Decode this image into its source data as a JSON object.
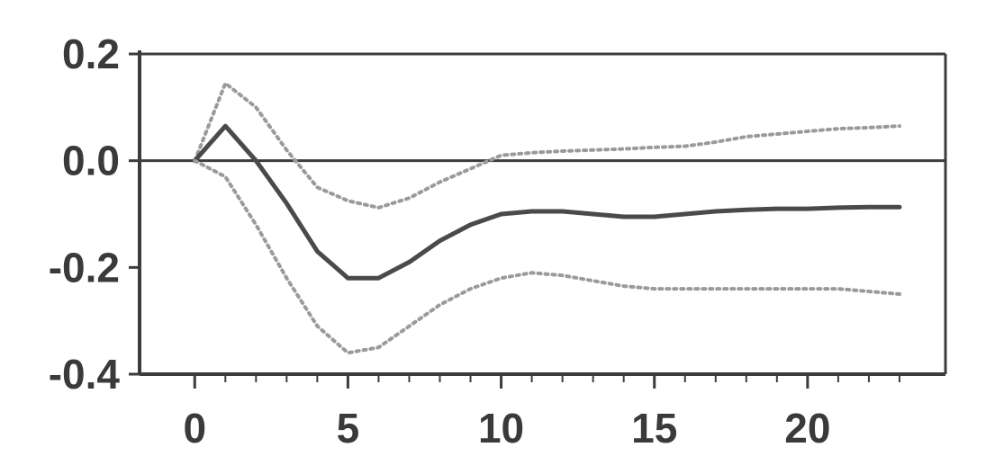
{
  "chart_data": {
    "type": "line",
    "title": "",
    "xlabel": "",
    "ylabel": "",
    "xlim": [
      -1.8,
      24.5
    ],
    "ylim": [
      -0.4,
      0.2
    ],
    "x_ticks": [
      0,
      5,
      10,
      15,
      20
    ],
    "x_tick_labels": [
      "0",
      "5",
      "10",
      "15",
      "20"
    ],
    "y_ticks": [
      0.2,
      0.0,
      -0.2,
      -0.4
    ],
    "y_tick_labels": [
      "0.2",
      "0.0",
      "-0.2",
      "-0.4"
    ],
    "grid": false,
    "reference_line_y": 0.0,
    "series": [
      {
        "role": "upper-band",
        "style": "dotted",
        "color": "#9a9a9a",
        "x": [
          0,
          1,
          2,
          3,
          4,
          5,
          6,
          7,
          8,
          9,
          10,
          11,
          12,
          13,
          14,
          15,
          16,
          17,
          18,
          19,
          20,
          21,
          22,
          23
        ],
        "y": [
          0.0,
          0.145,
          0.1,
          0.02,
          -0.05,
          -0.075,
          -0.088,
          -0.07,
          -0.04,
          -0.015,
          0.01,
          0.015,
          0.018,
          0.02,
          0.022,
          0.025,
          0.027,
          0.035,
          0.045,
          0.05,
          0.055,
          0.06,
          0.062,
          0.065
        ]
      },
      {
        "role": "estimate",
        "style": "solid",
        "color": "#4a4a4a",
        "x": [
          0,
          1,
          2,
          3,
          4,
          5,
          6,
          7,
          8,
          9,
          10,
          11,
          12,
          13,
          14,
          15,
          16,
          17,
          18,
          19,
          20,
          21,
          22,
          23
        ],
        "y": [
          0.0,
          0.065,
          0.0,
          -0.08,
          -0.17,
          -0.22,
          -0.22,
          -0.19,
          -0.15,
          -0.12,
          -0.1,
          -0.095,
          -0.095,
          -0.1,
          -0.105,
          -0.105,
          -0.1,
          -0.095,
          -0.092,
          -0.09,
          -0.09,
          -0.088,
          -0.087,
          -0.087
        ]
      },
      {
        "role": "lower-band",
        "style": "dotted",
        "color": "#9a9a9a",
        "x": [
          0,
          1,
          2,
          3,
          4,
          5,
          6,
          7,
          8,
          9,
          10,
          11,
          12,
          13,
          14,
          15,
          16,
          17,
          18,
          19,
          20,
          21,
          22,
          23
        ],
        "y": [
          0.0,
          -0.03,
          -0.12,
          -0.22,
          -0.31,
          -0.36,
          -0.35,
          -0.31,
          -0.27,
          -0.24,
          -0.22,
          -0.21,
          -0.215,
          -0.225,
          -0.235,
          -0.24,
          -0.24,
          -0.24,
          -0.24,
          -0.24,
          -0.24,
          -0.24,
          -0.245,
          -0.25
        ]
      }
    ]
  }
}
